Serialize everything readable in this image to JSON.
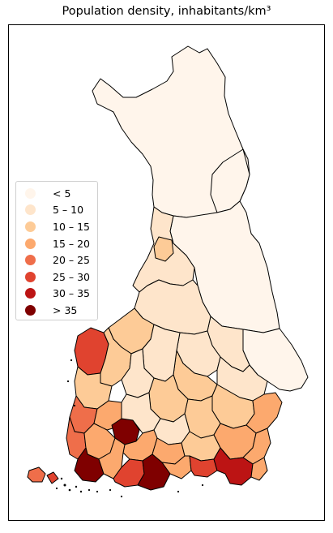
{
  "title": "Population density, inhabitants/km³",
  "legend": [
    {
      "label": "< 5",
      "color": "#fff5eb"
    },
    {
      "label": "5 – 10",
      "color": "#fee5cb"
    },
    {
      "label": "10 – 15",
      "color": "#fdcb97"
    },
    {
      "label": "15 – 20",
      "color": "#fca96e"
    },
    {
      "label": "20 – 25",
      "color": "#ef6e4a"
    },
    {
      "label": "25 – 30",
      "color": "#e0432f"
    },
    {
      "label": "30 – 35",
      "color": "#bc1414"
    },
    {
      "label": "> 35",
      "color": "#7f0000"
    }
  ]
}
